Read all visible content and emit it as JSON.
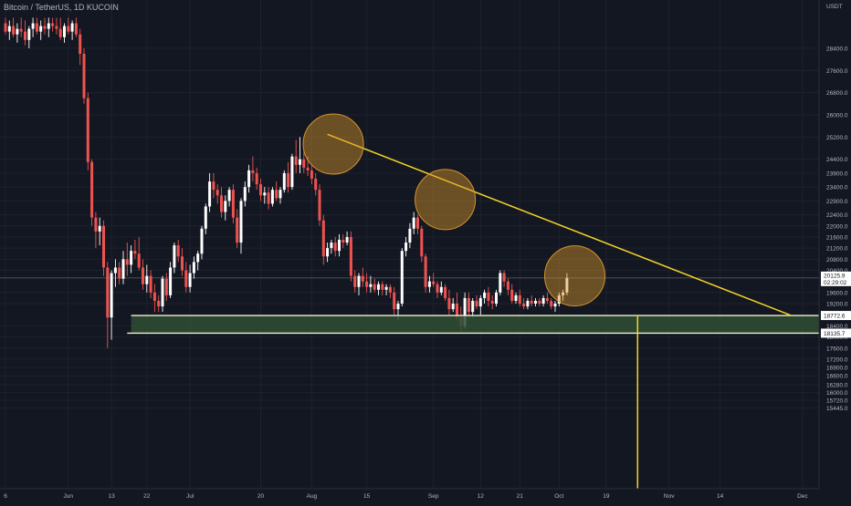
{
  "header": {
    "symbol_title": "Bitcoin / TetherUS, 1D KUCOIN"
  },
  "price_axis": {
    "currency": "USDT",
    "tick_labels": [
      "28400.0",
      "27600.0",
      "26800.0",
      "26000.0",
      "25200.0",
      "24400.0",
      "23900.0",
      "23400.0",
      "22900.0",
      "22400.0",
      "22000.0",
      "21600.0",
      "21200.0",
      "20800.0",
      "20400.0",
      "19600.0",
      "19200.0",
      "18400.0",
      "18000.0",
      "17600.0",
      "17200.0",
      "16900.0",
      "16600.0",
      "16280.0",
      "16000.0",
      "15720.0",
      "15445.0"
    ],
    "last_price_label": "20125.9",
    "countdown_label": "02:29:02",
    "level_labels": [
      "18772.6",
      "18135.7"
    ]
  },
  "time_axis": {
    "labels": [
      "6",
      "Jun",
      "13",
      "22",
      "Jul",
      "20",
      "Aug",
      "15",
      "Sep",
      "12",
      "21",
      "Oct",
      "19",
      "Nov",
      "14",
      "Dec"
    ]
  },
  "colors": {
    "background": "#131722",
    "grid": "#1e222d",
    "up": "#ffffff",
    "down": "#ef5350",
    "trendline": "#f5d327",
    "zone_fill": "#2f4f34",
    "zone_border": "#f3efcf",
    "circle": "#d7942b",
    "vertical_marker": "#f5d327"
  },
  "chart_data": {
    "type": "candlestick",
    "title": "Bitcoin / TetherUS, 1D KUCOIN",
    "ylabel": "USDT",
    "ylim": [
      15000,
      29500
    ],
    "candles": [
      {
        "o": 29300,
        "h": 29500,
        "l": 28900,
        "c": 29000
      },
      {
        "o": 29000,
        "h": 29400,
        "l": 28700,
        "c": 29200
      },
      {
        "o": 29200,
        "h": 29500,
        "l": 28800,
        "c": 28900
      },
      {
        "o": 28900,
        "h": 29300,
        "l": 28600,
        "c": 29100
      },
      {
        "o": 29100,
        "h": 29500,
        "l": 28800,
        "c": 29000
      },
      {
        "o": 29000,
        "h": 29400,
        "l": 28500,
        "c": 28700
      },
      {
        "o": 28700,
        "h": 29200,
        "l": 28400,
        "c": 29100
      },
      {
        "o": 29100,
        "h": 29500,
        "l": 28800,
        "c": 29300
      },
      {
        "o": 29300,
        "h": 29500,
        "l": 28900,
        "c": 29000
      },
      {
        "o": 29000,
        "h": 29400,
        "l": 28700,
        "c": 29200
      },
      {
        "o": 29200,
        "h": 29500,
        "l": 28900,
        "c": 29100
      },
      {
        "o": 29100,
        "h": 29500,
        "l": 28800,
        "c": 29300
      },
      {
        "o": 29300,
        "h": 29500,
        "l": 29000,
        "c": 29200
      },
      {
        "o": 29200,
        "h": 29500,
        "l": 28900,
        "c": 29100
      },
      {
        "o": 29100,
        "h": 29500,
        "l": 28700,
        "c": 28800
      },
      {
        "o": 28800,
        "h": 29300,
        "l": 28600,
        "c": 29200
      },
      {
        "o": 29200,
        "h": 29500,
        "l": 28900,
        "c": 29000
      },
      {
        "o": 29000,
        "h": 29400,
        "l": 28700,
        "c": 29300
      },
      {
        "o": 29300,
        "h": 29500,
        "l": 28800,
        "c": 28900
      },
      {
        "o": 28900,
        "h": 29100,
        "l": 27800,
        "c": 28200
      },
      {
        "o": 28200,
        "h": 28400,
        "l": 26400,
        "c": 26600
      },
      {
        "o": 26600,
        "h": 26800,
        "l": 24000,
        "c": 24300
      },
      {
        "o": 24300,
        "h": 24400,
        "l": 22000,
        "c": 22300
      },
      {
        "o": 22300,
        "h": 22500,
        "l": 21200,
        "c": 21800
      },
      {
        "o": 21800,
        "h": 22300,
        "l": 21300,
        "c": 22000
      },
      {
        "o": 22000,
        "h": 22200,
        "l": 20200,
        "c": 20500
      },
      {
        "o": 20500,
        "h": 20700,
        "l": 17600,
        "c": 18700
      },
      {
        "o": 18700,
        "h": 20400,
        "l": 17900,
        "c": 20300
      },
      {
        "o": 20300,
        "h": 20800,
        "l": 19800,
        "c": 20500
      },
      {
        "o": 20500,
        "h": 20700,
        "l": 19900,
        "c": 20100
      },
      {
        "o": 20100,
        "h": 21100,
        "l": 19900,
        "c": 20800
      },
      {
        "o": 20800,
        "h": 21400,
        "l": 20200,
        "c": 20600
      },
      {
        "o": 20600,
        "h": 21300,
        "l": 20300,
        "c": 21100
      },
      {
        "o": 21100,
        "h": 21500,
        "l": 20800,
        "c": 21000
      },
      {
        "o": 21000,
        "h": 21600,
        "l": 20400,
        "c": 20500
      },
      {
        "o": 20500,
        "h": 20800,
        "l": 19700,
        "c": 19900
      },
      {
        "o": 19900,
        "h": 20600,
        "l": 19600,
        "c": 20200
      },
      {
        "o": 20200,
        "h": 20400,
        "l": 19400,
        "c": 19600
      },
      {
        "o": 19600,
        "h": 19900,
        "l": 18900,
        "c": 19300
      },
      {
        "o": 19300,
        "h": 19500,
        "l": 18900,
        "c": 19100
      },
      {
        "o": 19100,
        "h": 20200,
        "l": 18900,
        "c": 20100
      },
      {
        "o": 20100,
        "h": 20300,
        "l": 19300,
        "c": 19500
      },
      {
        "o": 19500,
        "h": 20700,
        "l": 19400,
        "c": 20500
      },
      {
        "o": 20500,
        "h": 21400,
        "l": 20300,
        "c": 21300
      },
      {
        "o": 21300,
        "h": 21500,
        "l": 20700,
        "c": 20900
      },
      {
        "o": 20900,
        "h": 21200,
        "l": 20200,
        "c": 20400
      },
      {
        "o": 20400,
        "h": 20700,
        "l": 19600,
        "c": 19800
      },
      {
        "o": 19800,
        "h": 20600,
        "l": 19600,
        "c": 20300
      },
      {
        "o": 20300,
        "h": 20900,
        "l": 20100,
        "c": 20700
      },
      {
        "o": 20700,
        "h": 21100,
        "l": 20400,
        "c": 21000
      },
      {
        "o": 21000,
        "h": 22000,
        "l": 20800,
        "c": 21900
      },
      {
        "o": 21900,
        "h": 22800,
        "l": 21700,
        "c": 22700
      },
      {
        "o": 22700,
        "h": 23900,
        "l": 22500,
        "c": 23600
      },
      {
        "o": 23600,
        "h": 23900,
        "l": 23000,
        "c": 23300
      },
      {
        "o": 23300,
        "h": 23500,
        "l": 22800,
        "c": 23100
      },
      {
        "o": 23100,
        "h": 23400,
        "l": 22300,
        "c": 22500
      },
      {
        "o": 22500,
        "h": 23100,
        "l": 22200,
        "c": 22900
      },
      {
        "o": 22900,
        "h": 23400,
        "l": 22700,
        "c": 23300
      },
      {
        "o": 23300,
        "h": 23500,
        "l": 22100,
        "c": 22300
      },
      {
        "o": 22300,
        "h": 22600,
        "l": 21200,
        "c": 21400
      },
      {
        "o": 21400,
        "h": 23000,
        "l": 21000,
        "c": 22900
      },
      {
        "o": 22900,
        "h": 23600,
        "l": 22700,
        "c": 23400
      },
      {
        "o": 23400,
        "h": 24200,
        "l": 23200,
        "c": 24000
      },
      {
        "o": 24000,
        "h": 24500,
        "l": 23600,
        "c": 23900
      },
      {
        "o": 23900,
        "h": 24100,
        "l": 23300,
        "c": 23500
      },
      {
        "o": 23500,
        "h": 23700,
        "l": 22900,
        "c": 23100
      },
      {
        "o": 23100,
        "h": 23400,
        "l": 22800,
        "c": 23200
      },
      {
        "o": 23200,
        "h": 23400,
        "l": 22600,
        "c": 22800
      },
      {
        "o": 22800,
        "h": 23400,
        "l": 22700,
        "c": 23300
      },
      {
        "o": 23300,
        "h": 23600,
        "l": 22900,
        "c": 23000
      },
      {
        "o": 23000,
        "h": 23400,
        "l": 22800,
        "c": 23300
      },
      {
        "o": 23300,
        "h": 24000,
        "l": 23200,
        "c": 23900
      },
      {
        "o": 23900,
        "h": 24300,
        "l": 23200,
        "c": 23400
      },
      {
        "o": 23400,
        "h": 24600,
        "l": 23300,
        "c": 24500
      },
      {
        "o": 24500,
        "h": 25100,
        "l": 23900,
        "c": 24200
      },
      {
        "o": 24200,
        "h": 25200,
        "l": 23900,
        "c": 24400
      },
      {
        "o": 24400,
        "h": 24700,
        "l": 23900,
        "c": 24100
      },
      {
        "o": 24100,
        "h": 24500,
        "l": 23800,
        "c": 24000
      },
      {
        "o": 24000,
        "h": 24200,
        "l": 23500,
        "c": 23700
      },
      {
        "o": 23700,
        "h": 23900,
        "l": 23100,
        "c": 23300
      },
      {
        "o": 23300,
        "h": 23500,
        "l": 22000,
        "c": 22200
      },
      {
        "o": 22200,
        "h": 22400,
        "l": 20600,
        "c": 20900
      },
      {
        "o": 20900,
        "h": 21400,
        "l": 20700,
        "c": 21200
      },
      {
        "o": 21200,
        "h": 21500,
        "l": 21000,
        "c": 21400
      },
      {
        "o": 21400,
        "h": 21600,
        "l": 20900,
        "c": 21100
      },
      {
        "o": 21100,
        "h": 21700,
        "l": 20900,
        "c": 21500
      },
      {
        "o": 21500,
        "h": 21700,
        "l": 21200,
        "c": 21400
      },
      {
        "o": 21400,
        "h": 21800,
        "l": 21300,
        "c": 21600
      },
      {
        "o": 21600,
        "h": 21800,
        "l": 20000,
        "c": 20200
      },
      {
        "o": 20200,
        "h": 20400,
        "l": 19600,
        "c": 19800
      },
      {
        "o": 19800,
        "h": 20300,
        "l": 19500,
        "c": 20200
      },
      {
        "o": 20200,
        "h": 20500,
        "l": 19800,
        "c": 20000
      },
      {
        "o": 20000,
        "h": 20300,
        "l": 19600,
        "c": 19800
      },
      {
        "o": 19800,
        "h": 20200,
        "l": 19600,
        "c": 19900
      },
      {
        "o": 19900,
        "h": 20100,
        "l": 19600,
        "c": 19700
      },
      {
        "o": 19700,
        "h": 20000,
        "l": 19500,
        "c": 19900
      },
      {
        "o": 19900,
        "h": 20000,
        "l": 19500,
        "c": 19700
      },
      {
        "o": 19700,
        "h": 19900,
        "l": 19500,
        "c": 19800
      },
      {
        "o": 19800,
        "h": 19900,
        "l": 19400,
        "c": 19600
      },
      {
        "o": 19600,
        "h": 19800,
        "l": 18800,
        "c": 19000
      },
      {
        "o": 19000,
        "h": 19300,
        "l": 18600,
        "c": 19200
      },
      {
        "o": 19200,
        "h": 21200,
        "l": 19100,
        "c": 21100
      },
      {
        "o": 21100,
        "h": 21600,
        "l": 20900,
        "c": 21400
      },
      {
        "o": 21400,
        "h": 22100,
        "l": 21200,
        "c": 21900
      },
      {
        "o": 21900,
        "h": 22500,
        "l": 21700,
        "c": 22300
      },
      {
        "o": 22300,
        "h": 22400,
        "l": 21700,
        "c": 21900
      },
      {
        "o": 21900,
        "h": 22000,
        "l": 20700,
        "c": 20900
      },
      {
        "o": 20900,
        "h": 21000,
        "l": 19600,
        "c": 19800
      },
      {
        "o": 19800,
        "h": 20200,
        "l": 19600,
        "c": 20000
      },
      {
        "o": 20000,
        "h": 20300,
        "l": 19800,
        "c": 19900
      },
      {
        "o": 19900,
        "h": 20000,
        "l": 19400,
        "c": 19600
      },
      {
        "o": 19600,
        "h": 20000,
        "l": 19500,
        "c": 19800
      },
      {
        "o": 19800,
        "h": 19900,
        "l": 19300,
        "c": 19400
      },
      {
        "o": 19400,
        "h": 19700,
        "l": 18800,
        "c": 19000
      },
      {
        "o": 19000,
        "h": 19400,
        "l": 18900,
        "c": 19200
      },
      {
        "o": 19200,
        "h": 19600,
        "l": 18600,
        "c": 18700
      },
      {
        "o": 18700,
        "h": 19100,
        "l": 18200,
        "c": 18400
      },
      {
        "o": 18400,
        "h": 19600,
        "l": 18300,
        "c": 19400
      },
      {
        "o": 19400,
        "h": 19600,
        "l": 18700,
        "c": 18900
      },
      {
        "o": 18900,
        "h": 19400,
        "l": 18700,
        "c": 19300
      },
      {
        "o": 19300,
        "h": 19500,
        "l": 19000,
        "c": 19100
      },
      {
        "o": 19100,
        "h": 19500,
        "l": 18800,
        "c": 19400
      },
      {
        "o": 19400,
        "h": 19700,
        "l": 19200,
        "c": 19600
      },
      {
        "o": 19600,
        "h": 19800,
        "l": 19100,
        "c": 19300
      },
      {
        "o": 19300,
        "h": 19500,
        "l": 19000,
        "c": 19200
      },
      {
        "o": 19200,
        "h": 19700,
        "l": 19100,
        "c": 19600
      },
      {
        "o": 19600,
        "h": 20400,
        "l": 19500,
        "c": 20300
      },
      {
        "o": 20300,
        "h": 20400,
        "l": 19800,
        "c": 20000
      },
      {
        "o": 20000,
        "h": 20100,
        "l": 19500,
        "c": 19700
      },
      {
        "o": 19700,
        "h": 19900,
        "l": 19200,
        "c": 19300
      },
      {
        "o": 19300,
        "h": 19600,
        "l": 19200,
        "c": 19500
      },
      {
        "o": 19500,
        "h": 19700,
        "l": 19100,
        "c": 19200
      },
      {
        "o": 19200,
        "h": 19400,
        "l": 19000,
        "c": 19100
      },
      {
        "o": 19100,
        "h": 19400,
        "l": 19000,
        "c": 19300
      },
      {
        "o": 19300,
        "h": 19500,
        "l": 19100,
        "c": 19200
      },
      {
        "o": 19200,
        "h": 19400,
        "l": 19100,
        "c": 19300
      },
      {
        "o": 19300,
        "h": 19400,
        "l": 19100,
        "c": 19200
      },
      {
        "o": 19200,
        "h": 19500,
        "l": 19100,
        "c": 19400
      },
      {
        "o": 19400,
        "h": 19600,
        "l": 19200,
        "c": 19300
      },
      {
        "o": 19300,
        "h": 19400,
        "l": 19000,
        "c": 19100
      },
      {
        "o": 19100,
        "h": 19300,
        "l": 18900,
        "c": 19200
      },
      {
        "o": 19200,
        "h": 19600,
        "l": 19100,
        "c": 19500
      },
      {
        "o": 19500,
        "h": 19700,
        "l": 19300,
        "c": 19600
      },
      {
        "o": 19600,
        "h": 20300,
        "l": 19500,
        "c": 20125.9
      }
    ],
    "price_scale_ticks": [
      28400,
      27600,
      26800,
      26000,
      25200,
      24400,
      23900,
      23400,
      22900,
      22400,
      22000,
      21600,
      21200,
      20800,
      20400,
      19600,
      19200,
      18400,
      18000,
      17600,
      17200,
      16900,
      16600,
      16280,
      16000,
      15720,
      15445
    ],
    "support_zone": {
      "top": 18772.6,
      "bottom": 18135.7
    },
    "trendline": {
      "start": {
        "x": 82,
        "y": 25300
      },
      "end": {
        "x": 200,
        "y": 18780
      }
    },
    "highlight_circles": [
      {
        "x": 83.5,
        "y": 24950
      },
      {
        "x": 112,
        "y": 22950
      },
      {
        "x": 145,
        "y": 20200
      }
    ],
    "vertical_marker_x": 161,
    "total_slots": 200,
    "last_price": 20125.9
  }
}
